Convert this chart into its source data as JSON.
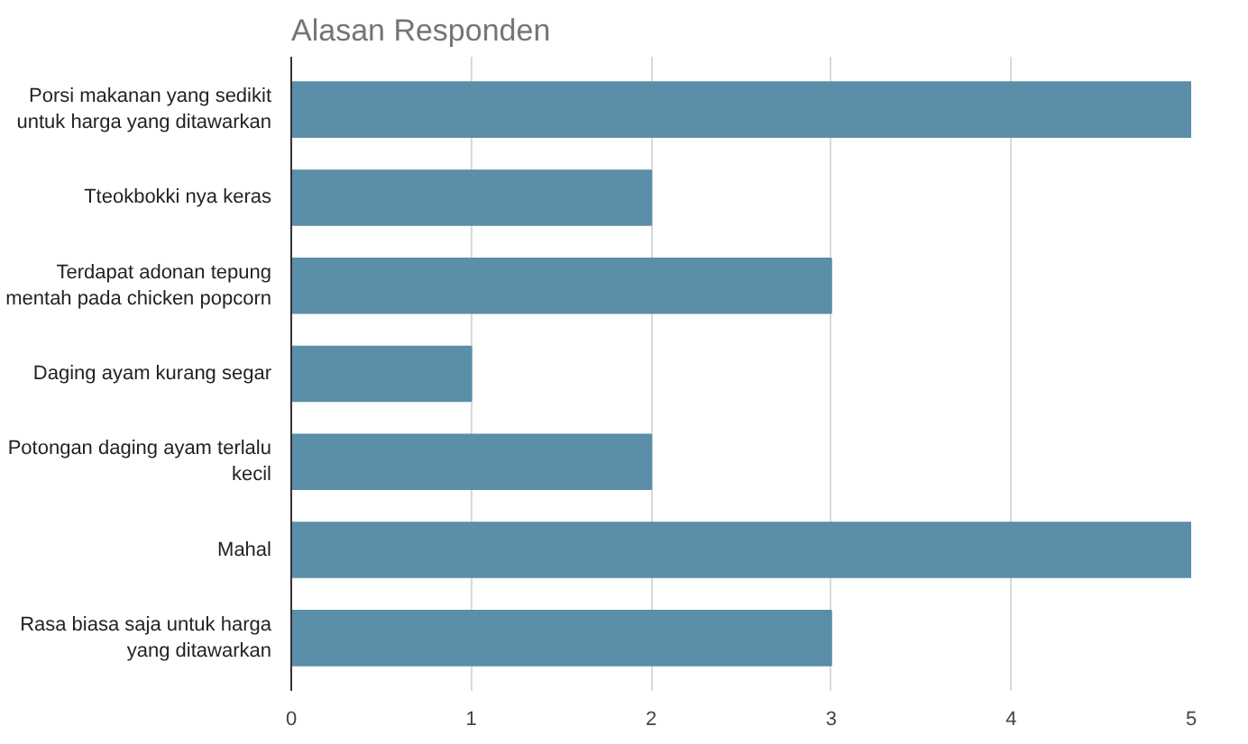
{
  "chart_data": {
    "type": "bar",
    "orientation": "horizontal",
    "title": "Alasan Responden",
    "categories": [
      "Porsi makanan yang sedikit untuk harga yang ditawarkan",
      "Tteokbokki nya keras",
      "Terdapat adonan tepung mentah pada chicken popcorn",
      "Daging ayam kurang segar",
      "Potongan daging ayam terlalu kecil",
      "Mahal",
      "Rasa biasa saja untuk harga yang ditawarkan"
    ],
    "values": [
      5,
      2,
      3,
      1,
      2,
      5,
      3
    ],
    "color": "#5b8ea8",
    "xlim": [
      0,
      5
    ],
    "xticks": [
      0,
      1,
      2,
      3,
      4,
      5
    ],
    "grid": "x"
  }
}
